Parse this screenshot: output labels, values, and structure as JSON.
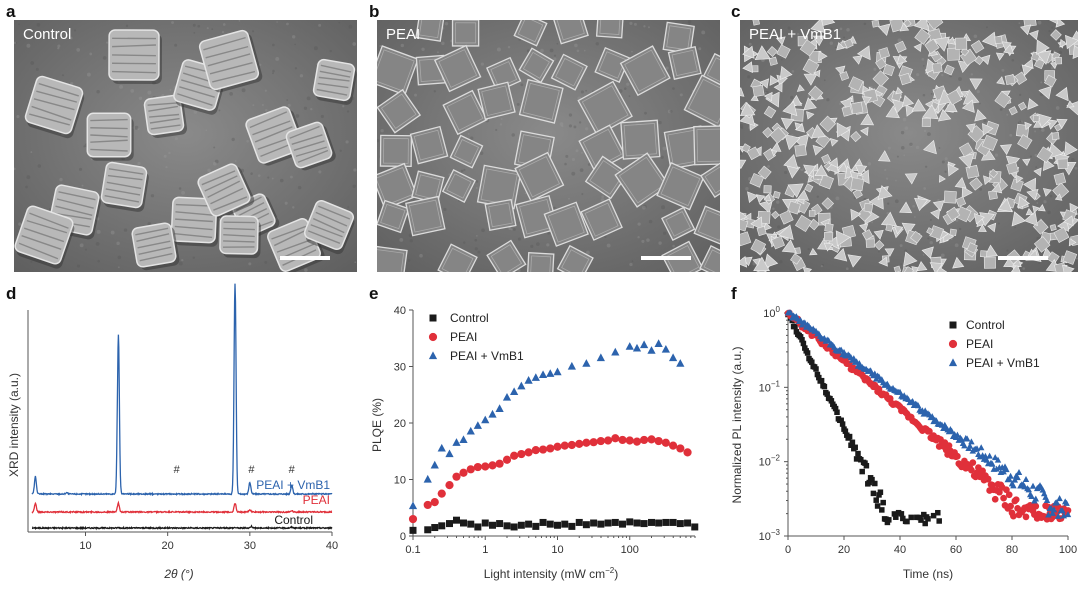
{
  "panels": {
    "a": {
      "letter": "a",
      "label": "Control"
    },
    "b": {
      "letter": "b",
      "label": "PEAI"
    },
    "c": {
      "letter": "c",
      "label": "PEAI + VmB1"
    },
    "d": {
      "letter": "d"
    },
    "e": {
      "letter": "e"
    },
    "f": {
      "letter": "f"
    }
  },
  "colors": {
    "control": "#1a1a1a",
    "peai": "#e0303a",
    "vmb1": "#2c63ad"
  },
  "chart_data": [
    {
      "type": "line",
      "panel": "d",
      "xlabel": "2θ (°)",
      "ylabel": "XRD intensity (a.u.)",
      "xlim": [
        3,
        40
      ],
      "xticks": [
        10,
        20,
        30,
        40
      ],
      "yticks_shown": false,
      "series": [
        {
          "name": "Control",
          "offset": 0,
          "peaks": [
            [
              14.0,
              0.3
            ],
            [
              28.2,
              0.3
            ],
            [
              30.2,
              1.2
            ],
            [
              35.1,
              0.6
            ]
          ]
        },
        {
          "name": "PEAI",
          "offset": 11,
          "peaks": [
            [
              3.9,
              6
            ],
            [
              14.0,
              6
            ],
            [
              28.2,
              6
            ],
            [
              30.0,
              1.5
            ],
            [
              35.1,
              1
            ]
          ]
        },
        {
          "name": "PEAI + VmB1",
          "offset": 23,
          "peaks": [
            [
              3.9,
              12
            ],
            [
              7.7,
              1
            ],
            [
              14.0,
              110
            ],
            [
              28.2,
              145
            ],
            [
              30.0,
              8
            ],
            [
              35.1,
              6
            ]
          ]
        }
      ],
      "annotations": [
        {
          "x": 21.1,
          "text": "#"
        },
        {
          "x": 30.2,
          "text": "#"
        },
        {
          "x": 35.1,
          "text": "#"
        }
      ]
    },
    {
      "type": "scatter",
      "panel": "e",
      "xlabel": "Light intensity (mW cm",
      "xlabel_sup": "−2",
      "xlabel_close": ")",
      "ylabel": "PLQE (%)",
      "xscale": "log",
      "xlim": [
        0.1,
        800
      ],
      "ylim": [
        0,
        40
      ],
      "xtick_labels": [
        "0.1",
        "1",
        "10",
        "100"
      ],
      "yticks": [
        0,
        10,
        20,
        30,
        40
      ],
      "legend": "top-left",
      "series": [
        {
          "name": "Control",
          "marker": "square",
          "x": [
            0.1,
            0.16,
            0.2,
            0.25,
            0.32,
            0.4,
            0.5,
            0.63,
            0.79,
            1.0,
            1.26,
            1.58,
            2.0,
            2.51,
            3.16,
            3.98,
            5.01,
            6.31,
            7.94,
            10,
            12.6,
            15.8,
            20,
            25.1,
            31.6,
            39.8,
            50.1,
            63.1,
            79.4,
            100,
            126,
            158,
            200,
            251,
            316,
            398,
            501,
            631,
            794
          ],
          "y": [
            1.0,
            1.1,
            1.5,
            1.8,
            2.2,
            2.8,
            2.3,
            2.1,
            1.6,
            2.3,
            1.9,
            2.2,
            1.8,
            1.6,
            1.9,
            2.1,
            1.7,
            2.4,
            2.1,
            1.9,
            2.1,
            1.7,
            2.4,
            2.0,
            2.3,
            2.1,
            2.3,
            2.4,
            2.1,
            2.5,
            2.3,
            2.2,
            2.4,
            2.3,
            2.4,
            2.4,
            2.2,
            2.3,
            1.6
          ]
        },
        {
          "name": "PEAI",
          "marker": "circle",
          "x": [
            0.1,
            0.16,
            0.2,
            0.25,
            0.32,
            0.4,
            0.5,
            0.63,
            0.79,
            1.0,
            1.26,
            1.58,
            2.0,
            2.51,
            3.16,
            3.98,
            5.01,
            6.31,
            7.94,
            10,
            12.6,
            15.8,
            20,
            25.1,
            31.6,
            39.8,
            50.1,
            63.1,
            79.4,
            100,
            126,
            158,
            200,
            251,
            316,
            398,
            501,
            631
          ],
          "y": [
            3.0,
            5.5,
            6.0,
            7.5,
            9.0,
            10.5,
            11.2,
            11.8,
            12.2,
            12.3,
            12.5,
            12.8,
            13.5,
            14.2,
            14.5,
            14.8,
            15.2,
            15.3,
            15.5,
            15.8,
            16.0,
            16.1,
            16.3,
            16.5,
            16.6,
            16.8,
            16.9,
            17.3,
            17.0,
            16.9,
            16.7,
            17.0,
            17.1,
            16.8,
            16.5,
            16.0,
            15.5,
            14.8
          ]
        },
        {
          "name": "PEAI + VmB1",
          "marker": "triangle",
          "x": [
            0.1,
            0.16,
            0.2,
            0.25,
            0.32,
            0.4,
            0.5,
            0.63,
            0.79,
            1.0,
            1.26,
            1.58,
            2.0,
            2.51,
            3.16,
            3.98,
            5.01,
            6.31,
            7.94,
            10,
            15.8,
            25.1,
            39.8,
            63.1,
            100,
            126,
            158,
            200,
            251,
            316,
            398,
            501
          ],
          "y": [
            5.3,
            10.0,
            12.5,
            15.5,
            14.5,
            16.5,
            17.0,
            18.5,
            19.5,
            20.5,
            21.5,
            22.5,
            24.5,
            25.5,
            26.5,
            27.5,
            28.0,
            28.5,
            28.7,
            29.0,
            30.0,
            30.5,
            31.5,
            32.5,
            33.5,
            33.2,
            33.8,
            32.8,
            34.0,
            33.0,
            31.5,
            30.5
          ]
        }
      ]
    },
    {
      "type": "scatter",
      "panel": "f",
      "xlabel": "Time (ns)",
      "ylabel": "Normalized PL intensity (a.u.)",
      "yscale": "log",
      "xlim": [
        0,
        100
      ],
      "ylim": [
        0.001,
        1
      ],
      "xticks": [
        0,
        20,
        40,
        60,
        80,
        100
      ],
      "ytick_exponents": [
        "0",
        "−1",
        "−2",
        "−3"
      ],
      "legend": "top-right",
      "series": [
        {
          "name": "Control",
          "marker": "square",
          "tau_ns": 5.6,
          "end_ns": 54,
          "floor": 0.0013
        },
        {
          "name": "PEAI",
          "marker": "circle",
          "tau_ns": 13.5,
          "end_ns": 100,
          "floor": 0.0016
        },
        {
          "name": "PEAI + VmB1",
          "marker": "triangle",
          "tau_ns": 15.8,
          "end_ns": 100,
          "floor": 0.0018
        }
      ]
    }
  ]
}
